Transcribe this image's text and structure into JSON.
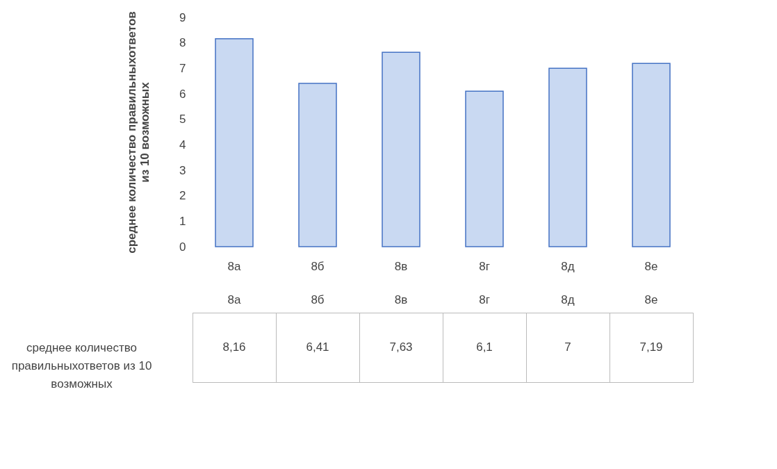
{
  "chart_data": {
    "type": "bar",
    "ylabel": "среднее количество правильныхответов из 10 возможных",
    "categories": [
      "8а",
      "8б",
      "8в",
      "8г",
      "8д",
      "8е"
    ],
    "series": [
      {
        "name": "среднее количество правильныхответов из 10 возможных",
        "color": "#c9d9f2",
        "values": [
          8.16,
          6.41,
          7.63,
          6.1,
          7,
          7.19
        ],
        "value_labels": [
          "8,16",
          "6,41",
          "7,63",
          "6,1",
          "7",
          "7,19"
        ]
      }
    ],
    "ylim": [
      0,
      9
    ],
    "yticks": [
      0,
      1,
      2,
      3,
      4,
      5,
      6,
      7,
      8,
      9
    ]
  }
}
